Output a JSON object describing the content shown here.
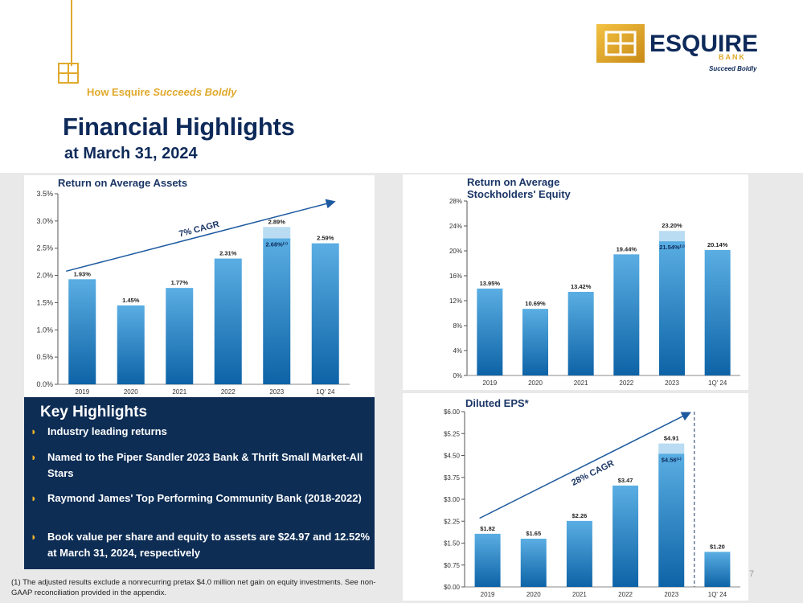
{
  "header": {
    "tagline_plain": "How Esquire ",
    "tagline_italic": "Succeeds Boldly",
    "title": "Financial Highlights",
    "subtitle": "at March 31, 2024"
  },
  "logo": {
    "name": "ESQUIRE",
    "bank": "BANK",
    "slogan": "Succeed Boldly",
    "mark": "EB"
  },
  "colors": {
    "navy": "#0e2a5a",
    "gold": "#e0a92c",
    "bar_top": "#5aaee3",
    "bar_bottom": "#0d63a6",
    "adjusted_segment": "#b9dcf3",
    "highlight_box": "#0d2d55"
  },
  "chart_data": [
    {
      "type": "bar",
      "title": "Return on Average Assets",
      "categories": [
        "2019",
        "2020",
        "2021",
        "2022",
        "2023",
        "1Q' 24"
      ],
      "values": [
        1.93,
        1.45,
        1.77,
        2.31,
        2.89,
        2.59
      ],
      "labels": [
        "1.93%",
        "1.45%",
        "1.77%",
        "2.31%",
        "2.89%",
        "2.59%"
      ],
      "adjusted": {
        "category": "2023",
        "value": 2.68,
        "label": "2.68%⁽¹⁾"
      },
      "ylim": [
        0,
        3.5
      ],
      "yticks": [
        "0.0%",
        "0.5%",
        "1.0%",
        "1.5%",
        "2.0%",
        "2.5%",
        "3.0%",
        "3.5%"
      ],
      "annotation": "7% CAGR",
      "grid": false
    },
    {
      "type": "bar",
      "title": "Return on Average Stockholders' Equity",
      "title_lines": [
        "Return on Average",
        "Stockholders' Equity"
      ],
      "categories": [
        "2019",
        "2020",
        "2021",
        "2022",
        "2023",
        "1Q' 24"
      ],
      "values": [
        13.95,
        10.69,
        13.42,
        19.44,
        23.2,
        20.14
      ],
      "labels": [
        "13.95%",
        "10.69%",
        "13.42%",
        "19.44%",
        "23.20%",
        "20.14%"
      ],
      "adjusted": {
        "category": "2023",
        "value": 21.54,
        "label": "21.54%⁽¹⁾"
      },
      "ylim": [
        0,
        28
      ],
      "yticks": [
        "0%",
        "4%",
        "8%",
        "12%",
        "16%",
        "20%",
        "24%",
        "28%"
      ],
      "grid": false
    },
    {
      "type": "bar",
      "title": "Diluted EPS*",
      "categories": [
        "2019",
        "2020",
        "2021",
        "2022",
        "2023",
        "1Q' 24"
      ],
      "values": [
        1.82,
        1.65,
        2.26,
        3.47,
        4.91,
        1.2
      ],
      "labels": [
        "$1.82",
        "$1.65",
        "$2.26",
        "$3.47",
        "$4.91",
        "$1.20"
      ],
      "adjusted": {
        "category": "2023",
        "value": 4.56,
        "label": "$4.56⁽¹⁾"
      },
      "ylim": [
        0,
        6
      ],
      "yticks": [
        "$0.00",
        "$0.75",
        "$1.50",
        "$2.25",
        "$3.00",
        "$3.75",
        "$4.50",
        "$5.25",
        "$6.00"
      ],
      "annotation": "28% CAGR",
      "grid": false
    }
  ],
  "highlights": {
    "title": "Key Highlights",
    "bullet": "◗",
    "items": [
      "Industry leading returns",
      "Named to the Piper Sandler 2023 Bank & Thrift Small Market-All Stars",
      "Raymond James' Top Performing Community Bank (2018-2022)",
      "Book value per share and equity to assets are $24.97 and 12.52% at March 31, 2024, respectively"
    ]
  },
  "footnote": "(1) The adjusted results exclude a nonrecurring pretax $4.0 million net gain on equity investments. See non-GAAP reconciliation provided in the appendix.",
  "page_number": "7"
}
